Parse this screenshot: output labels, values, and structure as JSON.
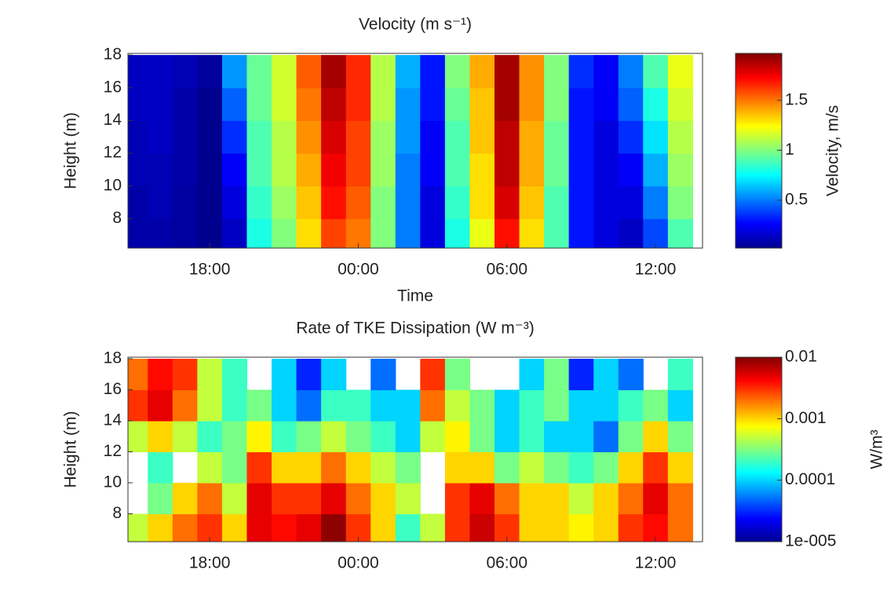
{
  "chart_data": [
    {
      "type": "heatmap",
      "title": "Velocity (m s⁻¹)",
      "xlabel": "Time",
      "ylabel": "Height (m)",
      "colormap": "jet",
      "x": [
        15,
        16,
        17,
        18,
        19,
        20,
        21,
        22,
        23,
        24,
        25,
        26,
        27,
        28,
        29,
        30,
        31,
        32,
        33,
        34,
        35,
        36,
        37
      ],
      "xlim": [
        14.7,
        37.9
      ],
      "xticks": [
        {
          "value": 18,
          "label": "18:00"
        },
        {
          "value": 24,
          "label": "00:00"
        },
        {
          "value": 30,
          "label": "06:00"
        },
        {
          "value": 36,
          "label": "12:00"
        }
      ],
      "y": [
        7,
        9,
        11,
        13,
        15,
        17
      ],
      "ylim": [
        6.2,
        18.1
      ],
      "yticks": [
        8,
        10,
        12,
        14,
        16,
        18
      ],
      "z": [
        [
          0.1,
          0.1,
          0.08,
          0.05,
          0.15,
          0.8,
          1.0,
          1.3,
          1.6,
          1.5,
          1.0,
          0.5,
          0.2,
          0.8,
          1.2,
          1.7,
          1.3,
          0.9,
          0.3,
          0.2,
          0.15,
          0.4,
          0.9
        ],
        [
          0.1,
          0.12,
          0.08,
          0.05,
          0.2,
          0.85,
          1.05,
          1.35,
          1.7,
          1.55,
          1.0,
          0.5,
          0.2,
          0.85,
          1.3,
          1.8,
          1.35,
          0.9,
          0.3,
          0.2,
          0.2,
          0.5,
          1.0
        ],
        [
          0.12,
          0.12,
          0.1,
          0.05,
          0.25,
          0.9,
          1.1,
          1.4,
          1.75,
          1.6,
          1.05,
          0.5,
          0.25,
          0.9,
          1.3,
          1.85,
          1.4,
          0.95,
          0.3,
          0.2,
          0.25,
          0.6,
          1.05
        ],
        [
          0.12,
          0.15,
          0.1,
          0.05,
          0.35,
          0.9,
          1.1,
          1.45,
          1.8,
          1.6,
          1.05,
          0.55,
          0.25,
          0.9,
          1.35,
          1.85,
          1.4,
          0.95,
          0.3,
          0.2,
          0.35,
          0.7,
          1.1
        ],
        [
          0.15,
          0.15,
          0.1,
          0.05,
          0.45,
          0.95,
          1.15,
          1.5,
          1.85,
          1.65,
          1.1,
          0.55,
          0.3,
          0.95,
          1.35,
          1.9,
          1.45,
          1.0,
          0.3,
          0.25,
          0.45,
          0.8,
          1.15
        ],
        [
          0.15,
          0.15,
          0.12,
          0.08,
          0.55,
          0.95,
          1.15,
          1.55,
          1.9,
          1.65,
          1.1,
          0.6,
          0.3,
          1.0,
          1.4,
          1.9,
          1.45,
          1.0,
          0.35,
          0.25,
          0.5,
          0.9,
          1.2
        ]
      ],
      "colorbar": {
        "label": "Velocity, m/s",
        "clim": [
          0.02,
          1.97
        ],
        "ticks": [
          0.5,
          1,
          1.5
        ],
        "log": false
      }
    },
    {
      "type": "heatmap",
      "title": "Rate of TKE Dissipation (W m⁻³)",
      "ylabel": "Height (m)",
      "colormap": "jet",
      "x": [
        15,
        16,
        17,
        18,
        19,
        20,
        21,
        22,
        23,
        24,
        25,
        26,
        27,
        28,
        29,
        30,
        31,
        32,
        33,
        34,
        35,
        36,
        37
      ],
      "xlim": [
        14.7,
        37.9
      ],
      "xticks": [
        {
          "value": 18,
          "label": "18:00"
        },
        {
          "value": 24,
          "label": "00:00"
        },
        {
          "value": 30,
          "label": "06:00"
        },
        {
          "value": 36,
          "label": "12:00"
        }
      ],
      "y": [
        7,
        9,
        11,
        13,
        15,
        17
      ],
      "ylim": [
        6.2,
        18.1
      ],
      "yticks": [
        8,
        10,
        12,
        14,
        16,
        18
      ],
      "z": [
        [
          0.0005,
          0.001,
          0.002,
          0.003,
          0.001,
          0.005,
          0.004,
          0.005,
          0.009,
          0.003,
          0.001,
          0.0002,
          0.0005,
          0.003,
          0.006,
          0.003,
          0.001,
          0.001,
          0.0008,
          0.001,
          0.003,
          0.004,
          0.002
        ],
        [
          null,
          0.0003,
          0.001,
          0.002,
          0.0005,
          0.005,
          0.003,
          0.003,
          0.005,
          0.002,
          0.001,
          0.0005,
          null,
          0.003,
          0.005,
          0.002,
          0.001,
          0.001,
          0.0005,
          0.001,
          0.002,
          0.005,
          0.002
        ],
        [
          null,
          0.0002,
          null,
          0.0005,
          0.0003,
          0.003,
          0.001,
          0.001,
          0.002,
          0.001,
          0.0005,
          0.0003,
          null,
          0.001,
          0.001,
          0.0003,
          0.0005,
          0.0003,
          0.0002,
          0.0003,
          0.001,
          0.003,
          0.001
        ],
        [
          0.0005,
          0.001,
          0.0005,
          0.0002,
          0.0003,
          0.0008,
          0.0002,
          0.0003,
          0.0005,
          0.0003,
          0.0002,
          0.0001,
          0.0005,
          0.0008,
          0.0003,
          0.0001,
          0.0002,
          0.0001,
          0.0001,
          5e-05,
          0.0003,
          0.001,
          0.0003
        ],
        [
          0.003,
          0.005,
          0.002,
          0.0005,
          0.0002,
          0.0003,
          0.0001,
          5e-05,
          0.0002,
          0.0002,
          0.0001,
          0.0001,
          0.002,
          0.0005,
          0.0003,
          0.0001,
          0.0002,
          0.0003,
          0.0001,
          0.0001,
          0.0002,
          0.0003,
          0.0001
        ],
        [
          0.002,
          0.004,
          0.003,
          0.0005,
          0.0002,
          null,
          0.0001,
          3e-05,
          0.0001,
          null,
          5e-05,
          null,
          0.003,
          0.0003,
          null,
          null,
          0.0001,
          0.0003,
          3e-05,
          0.0001,
          5e-05,
          null,
          0.0002
        ]
      ],
      "colorbar": {
        "label": "W/m³",
        "clim": [
          1e-05,
          0.01
        ],
        "ticks": [
          {
            "value": 1e-05,
            "label": "1e-005"
          },
          0.0001,
          0.001,
          0.01
        ],
        "log": true
      }
    }
  ]
}
